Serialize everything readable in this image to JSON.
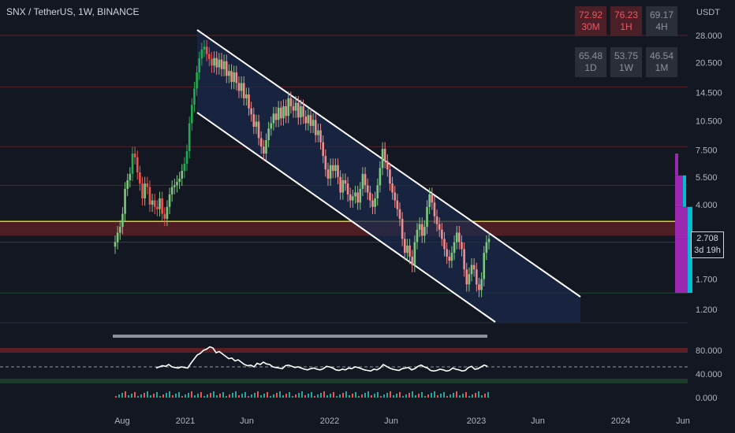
{
  "header": {
    "title": "SNX / TetherUS, 1W, BINANCE",
    "currency": "USDT"
  },
  "colors": {
    "background": "#131722",
    "grid_dash": "#5b1f2a",
    "up": "#26a69a",
    "up_bright": "#22ab52",
    "down": "#ef5350",
    "channel_fill": "#1b2a4a",
    "channel_line": "#ffffff",
    "yellow_line": "#d9d400",
    "resistance_zone": "#5b1e25",
    "rsi_line": "#ffffff",
    "rsi_over_band": "#5b1e25",
    "rsi_under_band": "#1c3b2c",
    "purple_bar": "#9c27b0",
    "teal_bar": "#00bcd4"
  },
  "rsi_table": [
    {
      "value": "72.92",
      "tf": "30M",
      "bg": "#4a1f27",
      "fg": "#f05563"
    },
    {
      "value": "76.23",
      "tf": "1H",
      "bg": "#4a1f27",
      "fg": "#f05563"
    },
    {
      "value": "69.17",
      "tf": "4H",
      "bg": "#2a2e39",
      "fg": "#8c909b"
    },
    {
      "value": "65.48",
      "tf": "1D",
      "bg": "#2a2e39",
      "fg": "#8c909b"
    },
    {
      "value": "53.75",
      "tf": "1W",
      "bg": "#2a2e39",
      "fg": "#8c909b"
    },
    {
      "value": "46.54",
      "tf": "1M",
      "bg": "#2a2e39",
      "fg": "#8c909b"
    }
  ],
  "last_price": {
    "value": "2.708",
    "countdown": "3d 19h"
  },
  "chart_data": {
    "type": "candlestick",
    "symbol": "SNX / TetherUS",
    "interval": "1W",
    "exchange": "BINANCE",
    "price_axis_labels": [
      "28.000",
      "20.500",
      "14.500",
      "10.500",
      "7.500",
      "5.500",
      "4.000",
      "2.708",
      "1.700",
      "1.200"
    ],
    "rsi_axis_labels": [
      "80.000",
      "40.000",
      "0.000"
    ],
    "time_axis_labels": [
      "Aug",
      "2021",
      "Jun",
      "2022",
      "Jun",
      "2023",
      "Jun",
      "2024",
      "Jun"
    ],
    "price_scale": "log",
    "yellow_level": 3.3,
    "resistance_zone": [
      2.8,
      3.3
    ],
    "support_level": 1.45,
    "dashed_levels": [
      28.0,
      15.5,
      7.8,
      5.0
    ],
    "close_series": [
      2.6,
      2.9,
      3.1,
      3.6,
      4.8,
      5.3,
      5.7,
      7.2,
      6.9,
      5.8,
      5.1,
      4.3,
      5.1,
      4.9,
      4.0,
      4.2,
      3.9,
      3.8,
      4.3,
      3.6,
      3.4,
      3.9,
      4.5,
      4.9,
      5.0,
      5.2,
      5.4,
      5.9,
      6.4,
      7.4,
      10.2,
      12.6,
      15.2,
      18.3,
      21.5,
      23.8,
      24.6,
      22.6,
      21.4,
      19.8,
      21.6,
      19.4,
      21.2,
      19.0,
      20.8,
      17.6,
      18.6,
      16.4,
      18.3,
      16.2,
      14.8,
      16.2,
      13.6,
      14.2,
      12.1,
      11.3,
      9.8,
      10.4,
      8.6,
      7.8,
      7.2,
      8.4,
      9.6,
      10.2,
      11.4,
      10.6,
      12.2,
      10.8,
      12.4,
      11.1,
      13.6,
      12.4,
      11.8,
      12.9,
      10.9,
      12.4,
      11.0,
      10.2,
      11.2,
      9.9,
      10.6,
      8.9,
      9.4,
      8.2,
      7.0,
      6.0,
      5.4,
      6.3,
      5.9,
      6.3,
      5.5,
      4.6,
      5.3,
      5.1,
      4.5,
      4.2,
      4.4,
      4.6,
      4.1,
      4.8,
      5.7,
      5.0,
      4.6,
      4.2,
      3.9,
      4.3,
      5.0,
      6.1,
      7.6,
      6.6,
      6.0,
      5.1,
      4.6,
      4.2,
      3.8,
      3.4,
      2.7,
      2.3,
      2.5,
      2.2,
      2.0,
      2.6,
      3.0,
      3.2,
      2.8,
      3.1,
      3.9,
      4.5,
      4.1,
      3.5,
      3.2,
      3.0,
      2.7,
      2.4,
      2.2,
      2.1,
      2.3,
      2.6,
      2.9,
      2.6,
      2.4,
      1.9,
      1.6,
      1.8,
      2.0,
      1.9,
      1.6,
      1.5,
      1.7,
      2.3,
      2.6,
      2.7
    ],
    "rsi_series": [
      50,
      52,
      54,
      53,
      56,
      52,
      51,
      50,
      52,
      51,
      50,
      58,
      65,
      72,
      75,
      80,
      82,
      86,
      84,
      76,
      78,
      74,
      70,
      66,
      67,
      62,
      64,
      60,
      56,
      54,
      55,
      52,
      58,
      56,
      60,
      57,
      56,
      52,
      51,
      50,
      49,
      54,
      55,
      53,
      51,
      52,
      50,
      48,
      47,
      49,
      50,
      48,
      47,
      49,
      53,
      52,
      50,
      47,
      46,
      48,
      47,
      50,
      49,
      52,
      51,
      49,
      47,
      46,
      45,
      48,
      47,
      50,
      56,
      53,
      50,
      48,
      47,
      46,
      49,
      50,
      51,
      47,
      49,
      53,
      55,
      52,
      50,
      46,
      45,
      46,
      48,
      47,
      45,
      46,
      50,
      48,
      47,
      45,
      46,
      51,
      53,
      48,
      49,
      52,
      55,
      53
    ],
    "volume_relative": "small bars at bottom of RSI pane"
  }
}
